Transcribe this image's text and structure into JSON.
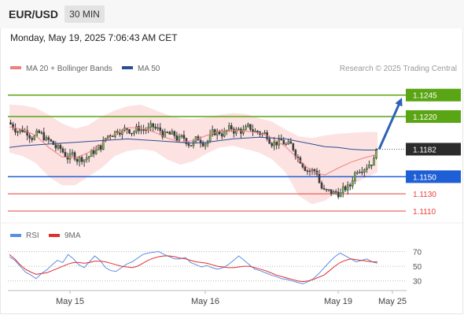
{
  "header": {
    "instrument": "EUR/USD",
    "timeframe": "30 MIN",
    "datetime": "Monday, May 19, 2025 7:06:43 AM CET"
  },
  "legend": {
    "ma20": "MA 20 + Bollinger Bands",
    "ma50": "MA 50",
    "source": "Research © 2025 Trading Central"
  },
  "rsi_legend": {
    "rsi": "RSI",
    "ma9": "9MA"
  },
  "colors": {
    "resistance": "#5aa514",
    "pivot": "#1f5fd6",
    "support": "#e8403a",
    "arrow": "#2d62b5",
    "ma20": "#f08080",
    "bollinger_fill": "#fde2e2",
    "ma50": "#2b4f93",
    "rsi": "#5b8ee6",
    "rsi_ma": "#e0302d",
    "candle": "#3c3c3c"
  },
  "chart_data": [
    {
      "type": "candlestick",
      "title": "EUR/USD 30 MIN",
      "x_tick_labels": [
        "May 15",
        "May 16",
        "May 19",
        "May 25"
      ],
      "ylim": [
        1.1099,
        1.1264
      ],
      "current_price": "1.1182",
      "levels": [
        {
          "label": "1.1245",
          "value": 1.1245,
          "role": "resistance"
        },
        {
          "label": "1.1220",
          "value": 1.122,
          "role": "resistance"
        },
        {
          "label": "1.1150",
          "value": 1.115,
          "role": "pivot"
        },
        {
          "label": "1.1130",
          "value": 1.113,
          "role": "support"
        },
        {
          "label": "1.1110",
          "value": 1.111,
          "role": "support"
        }
      ],
      "forecast_arrow": {
        "from": 1.1182,
        "to": 1.1245,
        "direction": "up"
      },
      "series": [
        {
          "name": "MA 20 + Bollinger Bands",
          "kind": "ma20",
          "values": [
            1.1208,
            1.1205,
            1.1198,
            1.1184,
            1.1173,
            1.1172,
            1.1178,
            1.1188,
            1.12,
            1.1207,
            1.1207,
            1.1202,
            1.1195,
            1.119,
            1.1192,
            1.1198,
            1.1203,
            1.1204,
            1.1203,
            1.1201,
            1.1195,
            1.1185,
            1.117,
            1.1156,
            1.1152,
            1.116,
            1.1167,
            1.1172,
            1.1176
          ]
        },
        {
          "name": "MA 50",
          "kind": "ma50",
          "values": [
            1.1184,
            1.1186,
            1.1187,
            1.1188,
            1.1189,
            1.119,
            1.1191,
            1.1192,
            1.1193,
            1.1194,
            1.1193,
            1.1192,
            1.1191,
            1.119,
            1.1189,
            1.119,
            1.1192,
            1.1194,
            1.1195,
            1.1196,
            1.1195,
            1.1194,
            1.1191,
            1.1188,
            1.1185,
            1.1184,
            1.1182,
            1.1181,
            1.1181
          ]
        }
      ],
      "bollinger_upper": [
        1.1234,
        1.1233,
        1.123,
        1.1222,
        1.1212,
        1.1206,
        1.121,
        1.122,
        1.1227,
        1.1232,
        1.1234,
        1.1228,
        1.1222,
        1.1218,
        1.1217,
        1.1219,
        1.1222,
        1.1224,
        1.1223,
        1.1218,
        1.1214,
        1.1205,
        1.1197,
        1.1195,
        1.1198,
        1.12,
        1.1201,
        1.1202,
        1.1202
      ],
      "bollinger_lower": [
        1.1178,
        1.1174,
        1.1166,
        1.115,
        1.114,
        1.114,
        1.115,
        1.116,
        1.1174,
        1.118,
        1.1182,
        1.118,
        1.117,
        1.1164,
        1.1168,
        1.1177,
        1.1184,
        1.1186,
        1.1182,
        1.1178,
        1.117,
        1.1155,
        1.1128,
        1.1118,
        1.1122,
        1.1132,
        1.114,
        1.1148,
        1.1155
      ]
    },
    {
      "type": "line",
      "title": "RSI",
      "y_ticks": [
        "70",
        "50",
        "30"
      ],
      "ylim": [
        20,
        78
      ],
      "series": [
        {
          "name": "RSI",
          "values": [
            63,
            58,
            50,
            42,
            38,
            33,
            40,
            45,
            52,
            58,
            55,
            66,
            60,
            52,
            48,
            56,
            64,
            58,
            48,
            44,
            43,
            48,
            53,
            56,
            61,
            66,
            68,
            69,
            70,
            66,
            63,
            60,
            60,
            62,
            55,
            52,
            49,
            51,
            48,
            46,
            48,
            52,
            58,
            64,
            58,
            52,
            46,
            44,
            41,
            38,
            36,
            33,
            32,
            30,
            28,
            26,
            29,
            33,
            40,
            48,
            56,
            63,
            68,
            64,
            60,
            56,
            58,
            60,
            56,
            54
          ]
        },
        {
          "name": "9MA",
          "values": [
            66,
            60,
            52,
            46,
            42,
            39,
            40,
            41,
            44,
            47,
            50,
            53,
            55,
            55,
            54,
            55,
            57,
            57,
            56,
            54,
            52,
            50,
            49,
            48,
            50,
            54,
            58,
            61,
            63,
            64,
            64,
            63,
            61,
            60,
            58,
            56,
            55,
            54,
            52,
            50,
            49,
            48,
            48,
            49,
            50,
            50,
            48,
            46,
            44,
            41,
            38,
            36,
            34,
            32,
            30,
            29,
            30,
            32,
            35,
            38,
            44,
            50,
            55,
            58,
            60,
            59,
            58,
            57,
            56,
            56
          ]
        }
      ]
    }
  ]
}
